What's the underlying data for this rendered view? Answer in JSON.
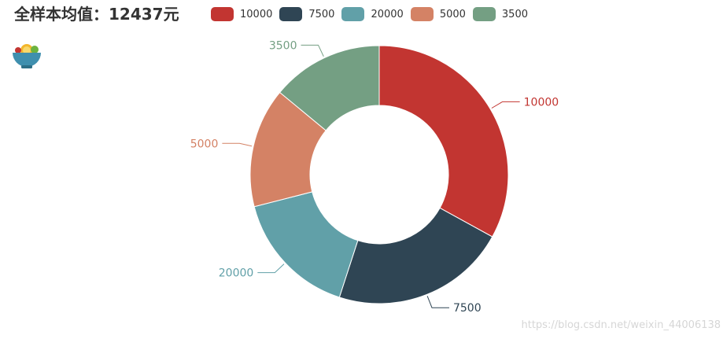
{
  "title": "全样本均值：12437元",
  "watermark": "https://blog.csdn.net/weixin_44006138",
  "colors": {
    "10000": "#c23531",
    "7500": "#2f4554",
    "20000": "#61a0a8",
    "5000": "#d48265",
    "3500": "#749f83"
  },
  "legend": [
    {
      "label": "10000",
      "color": "#c23531"
    },
    {
      "label": "7500",
      "color": "#2f4554"
    },
    {
      "label": "20000",
      "color": "#61a0a8"
    },
    {
      "label": "5000",
      "color": "#d48265"
    },
    {
      "label": "3500",
      "color": "#749f83"
    }
  ],
  "logo_icon": "salad-bowl-icon",
  "chart_data": {
    "type": "pie",
    "variant": "donut",
    "categories": [
      "10000",
      "7500",
      "20000",
      "5000",
      "3500"
    ],
    "values": [
      33,
      22,
      16,
      15,
      14
    ],
    "unit": "percent of total (estimated)",
    "labels": [
      "10000",
      "7500",
      "20000",
      "5000",
      "3500"
    ],
    "legend_position": "top",
    "title": "全样本均值：12437元"
  }
}
